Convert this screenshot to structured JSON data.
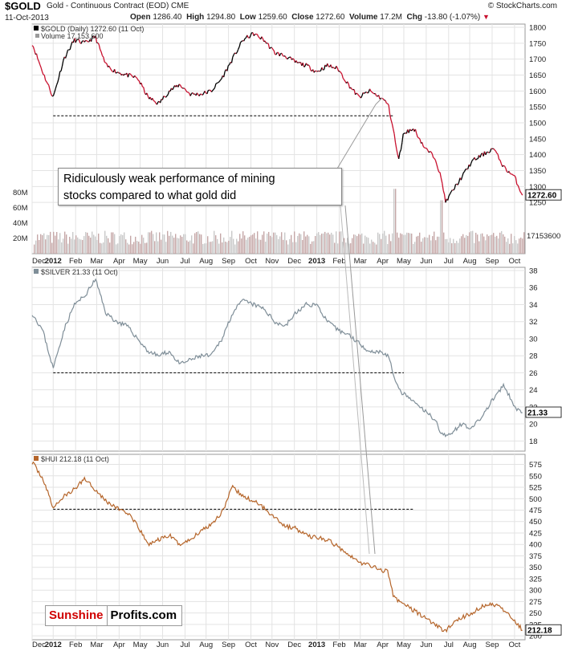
{
  "header": {
    "symbol": "$GOLD",
    "name": "Gold - Continuous Contract (EOD) CME",
    "date": "11-Oct-2013",
    "open_label": "Open",
    "open": "1286.40",
    "high_label": "High",
    "high": "1294.80",
    "low_label": "Low",
    "low": "1259.60",
    "close_label": "Close",
    "close": "1272.60",
    "volume_label": "Volume",
    "volume": "17.2M",
    "chg_label": "Chg",
    "chg": "-13.80 (-1.07%)",
    "site": "© StockCharts.com"
  },
  "annotation": "Ridiculously weak performance of mining\nstocks compared to what gold did",
  "brand": {
    "part1": "Sunshine",
    "part2": "Profits.com"
  },
  "colors": {
    "gold_up": "#000000",
    "gold_down": "#c8102e",
    "silver": "#7f8e98",
    "hui": "#b5652a",
    "volume_bar": "#c5a7a7",
    "volume_bar_alt": "#c9c9c9",
    "grid": "#e3e3e3",
    "support": "#000000"
  },
  "chart_data": [
    {
      "type": "line",
      "panel": "gold",
      "title": "$GOLD (Daily) 1272.60 (11 Oct)",
      "volume_label": "Volume 17,153,600",
      "last_value": "1272.60",
      "volume_last": "17153600",
      "ylim": [
        1200,
        1800
      ],
      "yticks": [
        1250,
        1300,
        1350,
        1400,
        1450,
        1500,
        1550,
        1600,
        1650,
        1700,
        1750,
        1800
      ],
      "volume_ticks": [
        "20M",
        "40M",
        "60M",
        "80M"
      ],
      "volume_tick_values": [
        20,
        40,
        60,
        80
      ],
      "support_level": 1522,
      "support_x": [
        2012.0,
        2013.29
      ],
      "x": [
        2011.92,
        2011.96,
        2012.0,
        2012.04,
        2012.08,
        2012.12,
        2012.16,
        2012.2,
        2012.24,
        2012.28,
        2012.32,
        2012.36,
        2012.4,
        2012.44,
        2012.48,
        2012.52,
        2012.56,
        2012.6,
        2012.64,
        2012.68,
        2012.72,
        2012.76,
        2012.8,
        2012.84,
        2012.88,
        2012.92,
        2012.96,
        2013.0,
        2013.04,
        2013.08,
        2013.12,
        2013.16,
        2013.2,
        2013.24,
        2013.27,
        2013.29,
        2013.31,
        2013.33,
        2013.37,
        2013.41,
        2013.45,
        2013.47,
        2013.49,
        2013.51,
        2013.55,
        2013.59,
        2013.63,
        2013.67,
        2013.71,
        2013.75,
        2013.78
      ],
      "values": [
        1750,
        1660,
        1580,
        1700,
        1760,
        1750,
        1770,
        1680,
        1660,
        1650,
        1640,
        1580,
        1560,
        1600,
        1620,
        1590,
        1590,
        1600,
        1640,
        1700,
        1760,
        1780,
        1760,
        1720,
        1710,
        1690,
        1680,
        1660,
        1680,
        1670,
        1620,
        1580,
        1600,
        1580,
        1560,
        1480,
        1380,
        1470,
        1480,
        1420,
        1390,
        1330,
        1250,
        1280,
        1330,
        1380,
        1400,
        1420,
        1360,
        1330,
        1272.6
      ],
      "x_ticks": [
        {
          "label": "Dec",
          "x": 2011.92
        },
        {
          "label": "2012",
          "x": 2012.0,
          "bold": true
        },
        {
          "label": "Feb",
          "x": 2012.085
        },
        {
          "label": "Mar",
          "x": 2012.165
        },
        {
          "label": "Apr",
          "x": 2012.25
        },
        {
          "label": "May",
          "x": 2012.33
        },
        {
          "label": "Jun",
          "x": 2012.415
        },
        {
          "label": "Jul",
          "x": 2012.5
        },
        {
          "label": "Aug",
          "x": 2012.58
        },
        {
          "label": "Sep",
          "x": 2012.665
        },
        {
          "label": "Oct",
          "x": 2012.75
        },
        {
          "label": "Nov",
          "x": 2012.83
        },
        {
          "label": "Dec",
          "x": 2012.915
        },
        {
          "label": "2013",
          "x": 2013.0,
          "bold": true
        },
        {
          "label": "Feb",
          "x": 2013.085
        },
        {
          "label": "Mar",
          "x": 2013.165
        },
        {
          "label": "Apr",
          "x": 2013.25
        },
        {
          "label": "May",
          "x": 2013.33
        },
        {
          "label": "Jun",
          "x": 2013.415
        },
        {
          "label": "Jul",
          "x": 2013.5
        },
        {
          "label": "Aug",
          "x": 2013.58
        },
        {
          "label": "Sep",
          "x": 2013.665
        },
        {
          "label": "Oct",
          "x": 2013.75
        }
      ]
    },
    {
      "type": "line",
      "panel": "silver",
      "title": "$SILVER 21.33 (11 Oct)",
      "last_value": "21.33",
      "ylim": [
        17,
        38
      ],
      "yticks": [
        18,
        20,
        22,
        24,
        26,
        28,
        30,
        32,
        34,
        36,
        38
      ],
      "support_level": 26,
      "support_x": [
        2012.0,
        2013.33
      ],
      "x": [
        2011.92,
        2011.96,
        2012.0,
        2012.04,
        2012.08,
        2012.12,
        2012.16,
        2012.2,
        2012.24,
        2012.28,
        2012.32,
        2012.36,
        2012.4,
        2012.44,
        2012.48,
        2012.52,
        2012.56,
        2012.6,
        2012.64,
        2012.68,
        2012.72,
        2012.76,
        2012.8,
        2012.84,
        2012.88,
        2012.92,
        2012.96,
        2013.0,
        2013.04,
        2013.08,
        2013.12,
        2013.16,
        2013.2,
        2013.24,
        2013.27,
        2013.29,
        2013.31,
        2013.33,
        2013.37,
        2013.41,
        2013.45,
        2013.47,
        2013.49,
        2013.51,
        2013.55,
        2013.59,
        2013.63,
        2013.67,
        2013.71,
        2013.75,
        2013.78
      ],
      "values": [
        33,
        31,
        26.5,
        31,
        34,
        35,
        37,
        33,
        32,
        31.5,
        30,
        28.5,
        28,
        28.5,
        27,
        27.5,
        28,
        28,
        30,
        33,
        34.5,
        34,
        33.5,
        32,
        31.5,
        33,
        34,
        34,
        32,
        31,
        30.5,
        29.5,
        28.5,
        28.5,
        28,
        26,
        24,
        23.5,
        22.5,
        21.5,
        20.5,
        19,
        18.5,
        19,
        20,
        19.5,
        21,
        23,
        24.5,
        22,
        21.33
      ]
    },
    {
      "type": "line",
      "panel": "hui",
      "title": "$HUI 212.18 (11 Oct)",
      "last_value": "212.18",
      "ylim": [
        195,
        590
      ],
      "yticks": [
        200,
        225,
        250,
        275,
        300,
        325,
        350,
        375,
        400,
        425,
        450,
        475,
        500,
        525,
        550,
        575
      ],
      "support_level": 477,
      "support_x": [
        2012.0,
        2013.37
      ],
      "x": [
        2011.92,
        2011.96,
        2012.0,
        2012.04,
        2012.08,
        2012.12,
        2012.16,
        2012.2,
        2012.24,
        2012.28,
        2012.32,
        2012.36,
        2012.4,
        2012.44,
        2012.48,
        2012.52,
        2012.56,
        2012.6,
        2012.64,
        2012.68,
        2012.72,
        2012.76,
        2012.8,
        2012.84,
        2012.88,
        2012.92,
        2012.96,
        2013.0,
        2013.04,
        2013.08,
        2013.12,
        2013.16,
        2013.2,
        2013.24,
        2013.27,
        2013.29,
        2013.31,
        2013.33,
        2013.37,
        2013.41,
        2013.45,
        2013.47,
        2013.49,
        2013.51,
        2013.55,
        2013.59,
        2013.63,
        2013.67,
        2013.71,
        2013.75,
        2013.78
      ],
      "values": [
        580,
        545,
        480,
        505,
        520,
        545,
        520,
        495,
        480,
        470,
        440,
        400,
        410,
        420,
        400,
        410,
        430,
        445,
        470,
        525,
        505,
        495,
        480,
        460,
        440,
        435,
        420,
        415,
        410,
        395,
        380,
        360,
        355,
        345,
        340,
        290,
        275,
        270,
        255,
        240,
        225,
        215,
        210,
        225,
        240,
        250,
        265,
        270,
        255,
        235,
        212.18
      ]
    }
  ]
}
